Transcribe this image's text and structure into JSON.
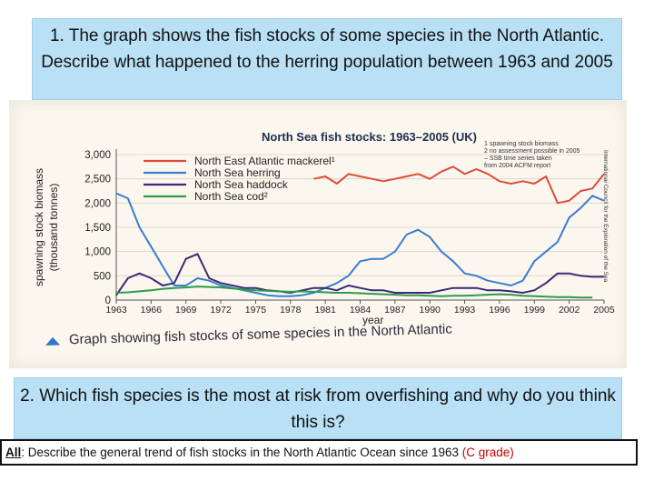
{
  "question1": "1. The graph shows the fish stocks of some species in the North Atlantic. Describe what happened to the herring population between 1963 and 2005",
  "question2": "2. Which fish species is the most at risk from overfishing and why do you think this is?",
  "all_task": {
    "label": "All",
    "text": ": Describe the general trend of fish stocks in the North Atlantic Ocean since 1963 ",
    "grade": "(C grade)"
  },
  "caption": "Graph showing fish stocks of some species in the North Atlantic",
  "colors": {
    "mackerel": "#e04a3a",
    "herring": "#3a7dd0",
    "haddock": "#3a2a78",
    "cod": "#2e9a4a",
    "box": "#b9e0f5"
  },
  "chart_data": {
    "type": "line",
    "title": "North Sea fish stocks: 1963–2005 (UK)",
    "ylabel": "spawning stock biomass (thousand tonnes)",
    "xlabel": "year",
    "ylim": [
      0,
      3000
    ],
    "xlim": [
      1963,
      2005
    ],
    "yticks": [
      0,
      500,
      1000,
      1500,
      2000,
      2500,
      3000
    ],
    "ytick_labels": [
      "0",
      "500",
      "1,000",
      "1,500",
      "2,000",
      "2,500",
      "3,000"
    ],
    "xticks": [
      1963,
      1966,
      1969,
      1972,
      1975,
      1978,
      1981,
      1984,
      1987,
      1990,
      1993,
      1996,
      1999,
      2002,
      2005
    ],
    "legend_position": "top-left",
    "notes": [
      "1 spawning stock biomass",
      "2 no assessment possible in 2005",
      "– SSB time series taken",
      "from 2004 ACFM report"
    ],
    "side_note": "International Council for the Exploration of the Sea",
    "series": [
      {
        "name": "North East Atlantic mackerel¹",
        "color": "#e04a3a",
        "x": [
          1980,
          1981,
          1982,
          1983,
          1984,
          1985,
          1986,
          1987,
          1988,
          1989,
          1990,
          1991,
          1992,
          1993,
          1994,
          1995,
          1996,
          1997,
          1998,
          1999,
          2000,
          2001,
          2002,
          2003,
          2004,
          2005
        ],
        "y": [
          2500,
          2550,
          2400,
          2600,
          2550,
          2500,
          2450,
          2500,
          2550,
          2600,
          2500,
          2650,
          2750,
          2600,
          2700,
          2600,
          2450,
          2400,
          2450,
          2400,
          2550,
          2000,
          2050,
          2250,
          2300,
          2600
        ]
      },
      {
        "name": "North Sea herring",
        "color": "#3a7dd0",
        "x": [
          1963,
          1964,
          1965,
          1966,
          1967,
          1968,
          1969,
          1970,
          1971,
          1972,
          1973,
          1974,
          1975,
          1976,
          1977,
          1978,
          1979,
          1980,
          1981,
          1982,
          1983,
          1984,
          1985,
          1986,
          1987,
          1988,
          1989,
          1990,
          1991,
          1992,
          1993,
          1994,
          1995,
          1996,
          1997,
          1998,
          1999,
          2000,
          2001,
          2002,
          2003,
          2004,
          2005
        ],
        "y": [
          2200,
          2100,
          1500,
          1100,
          700,
          300,
          300,
          450,
          400,
          300,
          250,
          200,
          150,
          100,
          80,
          80,
          100,
          150,
          250,
          350,
          500,
          800,
          850,
          850,
          1000,
          1350,
          1450,
          1300,
          1000,
          800,
          550,
          500,
          400,
          350,
          300,
          400,
          800,
          1000,
          1200,
          1700,
          1900,
          2150,
          2050
        ]
      },
      {
        "name": "North Sea haddock",
        "color": "#3a2a78",
        "x": [
          1963,
          1964,
          1965,
          1966,
          1967,
          1968,
          1969,
          1970,
          1971,
          1972,
          1973,
          1974,
          1975,
          1976,
          1977,
          1978,
          1979,
          1980,
          1981,
          1982,
          1983,
          1984,
          1985,
          1986,
          1987,
          1988,
          1989,
          1990,
          1991,
          1992,
          1993,
          1994,
          1995,
          1996,
          1997,
          1998,
          1999,
          2000,
          2001,
          2002,
          2003,
          2004,
          2005
        ],
        "y": [
          100,
          450,
          550,
          450,
          300,
          350,
          850,
          950,
          450,
          350,
          300,
          250,
          250,
          200,
          180,
          150,
          200,
          250,
          250,
          200,
          300,
          250,
          200,
          200,
          150,
          150,
          150,
          150,
          200,
          250,
          250,
          250,
          200,
          200,
          180,
          150,
          200,
          350,
          550,
          550,
          500,
          480,
          480
        ]
      },
      {
        "name": "North Sea cod²",
        "color": "#2e9a4a",
        "x": [
          1963,
          1964,
          1965,
          1966,
          1967,
          1968,
          1969,
          1970,
          1971,
          1972,
          1973,
          1974,
          1975,
          1976,
          1977,
          1978,
          1979,
          1980,
          1981,
          1982,
          1983,
          1984,
          1985,
          1986,
          1987,
          1988,
          1989,
          1990,
          1991,
          1992,
          1993,
          1994,
          1995,
          1996,
          1997,
          1998,
          1999,
          2000,
          2001,
          2002,
          2003,
          2004
        ],
        "y": [
          150,
          160,
          180,
          200,
          230,
          250,
          260,
          280,
          270,
          260,
          240,
          220,
          200,
          190,
          180,
          170,
          180,
          170,
          160,
          150,
          150,
          140,
          130,
          120,
          110,
          100,
          100,
          90,
          80,
          90,
          90,
          100,
          110,
          120,
          110,
          90,
          80,
          70,
          60,
          60,
          50,
          50
        ]
      }
    ]
  }
}
